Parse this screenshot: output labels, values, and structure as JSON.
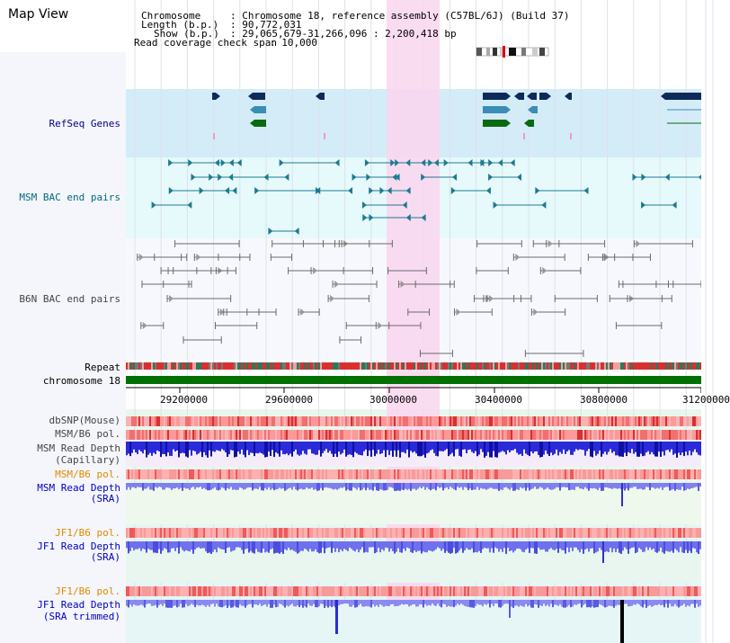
{
  "app": {
    "title": "Map View"
  },
  "info": {
    "chromosome_key": "Chromosome",
    "chromosome_val": ": Chromosome 18, reference assembly (C57BL/6J) (Build 37)",
    "length_key": "Length (b.p.)",
    "length_val": ": 90,772,031",
    "show_key": "Show (b.p.)",
    "show_val": ": 29,065,679-31,266,096 : 2,200,418 bp",
    "coverage_key": "Read coverage check span",
    "coverage_val": ": 10,000"
  },
  "tracks": {
    "refseq": "RefSeq Genes",
    "msm_bac": "MSM BAC end pairs",
    "b6n_bac": "B6N BAC end pairs",
    "repeat": "Repeat",
    "chromosome": "chromosome 18",
    "dbsnp": "dbSNP(Mouse)",
    "msm_b6_pol": "MSM/B6 pol.",
    "msm_read_depth_cap_1": "MSM Read Depth",
    "msm_read_depth_cap_2": "(Capillary)",
    "msm_b6_pol_2": "MSM/B6 pol.",
    "msm_read_depth_sra_1": "MSM Read Depth",
    "msm_read_depth_sra_2": "(SRA)",
    "jf1_b6_pol": "JF1/B6 pol.",
    "jf1_read_depth_sra_1": "JF1 Read Depth",
    "jf1_read_depth_sra_2": "(SRA)",
    "jf1_b6_pol_2": "JF1/B6 pol.",
    "jf1_read_depth_trim_1": "JF1 Read Depth",
    "jf1_read_depth_trim_2": "(SRA trimmed)"
  },
  "axis": {
    "ticks": [
      "29200000",
      "29600000",
      "30000000",
      "30400000",
      "30800000",
      "31200000"
    ]
  },
  "colors": {
    "refseq_bg": "#d3ecf8",
    "bac_bg": "#e6f9fb",
    "highlight": "#f9d6ef",
    "chromosome_bar": "#007000",
    "depth_dark": "#1f1fe0",
    "depth_light": "#7a7aef",
    "snp_red": "#f06060"
  }
}
